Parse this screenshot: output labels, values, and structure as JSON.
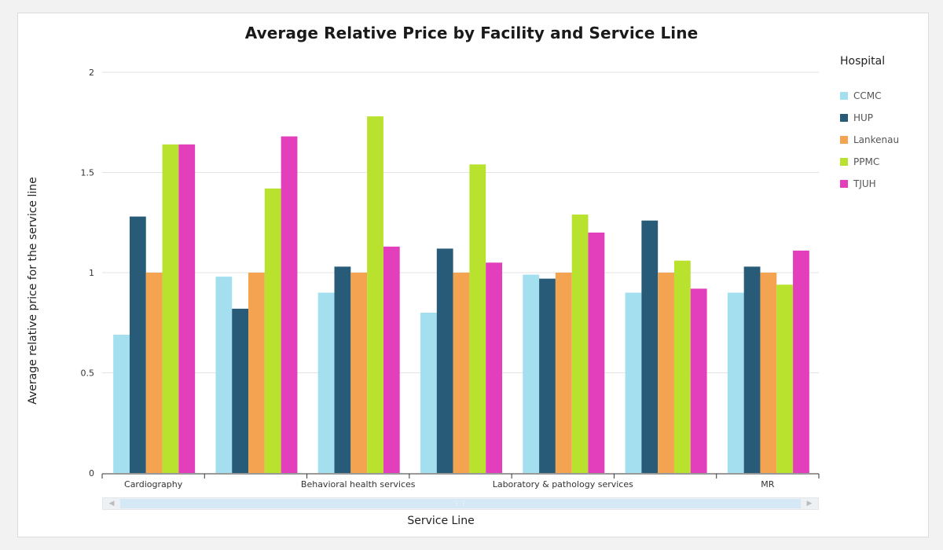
{
  "legend_title": "Hospital",
  "chart_data": {
    "type": "bar",
    "title": "Average Relative Price by Facility and Service Line",
    "xlabel": "Service Line",
    "ylabel": "Average relative price for the service line",
    "ylim": [
      0,
      2
    ],
    "yticks": [
      "0",
      "0.5",
      "1",
      "1.5",
      "2"
    ],
    "grid": true,
    "legend_position": "right",
    "categories": [
      "Cardiography",
      "",
      "Behavioral health services",
      "",
      "Laboratory & pathology services",
      "",
      "MR"
    ],
    "series": [
      {
        "name": "CCMC",
        "color": "#a3dfef",
        "values": [
          0.69,
          0.98,
          0.9,
          0.8,
          0.99,
          0.9,
          0.9
        ]
      },
      {
        "name": "HUP",
        "color": "#285b77",
        "values": [
          1.28,
          0.82,
          1.03,
          1.12,
          0.97,
          1.26,
          1.03
        ]
      },
      {
        "name": "Lankenau",
        "color": "#f4a450",
        "values": [
          1.0,
          1.0,
          1.0,
          1.0,
          1.0,
          1.0,
          1.0
        ]
      },
      {
        "name": "PPMC",
        "color": "#b9e22e",
        "values": [
          1.64,
          1.42,
          1.78,
          1.54,
          1.29,
          1.06,
          0.94
        ]
      },
      {
        "name": "TJUH",
        "color": "#e33fbc",
        "values": [
          1.64,
          1.68,
          1.13,
          1.05,
          1.2,
          0.92,
          1.11
        ]
      }
    ]
  }
}
